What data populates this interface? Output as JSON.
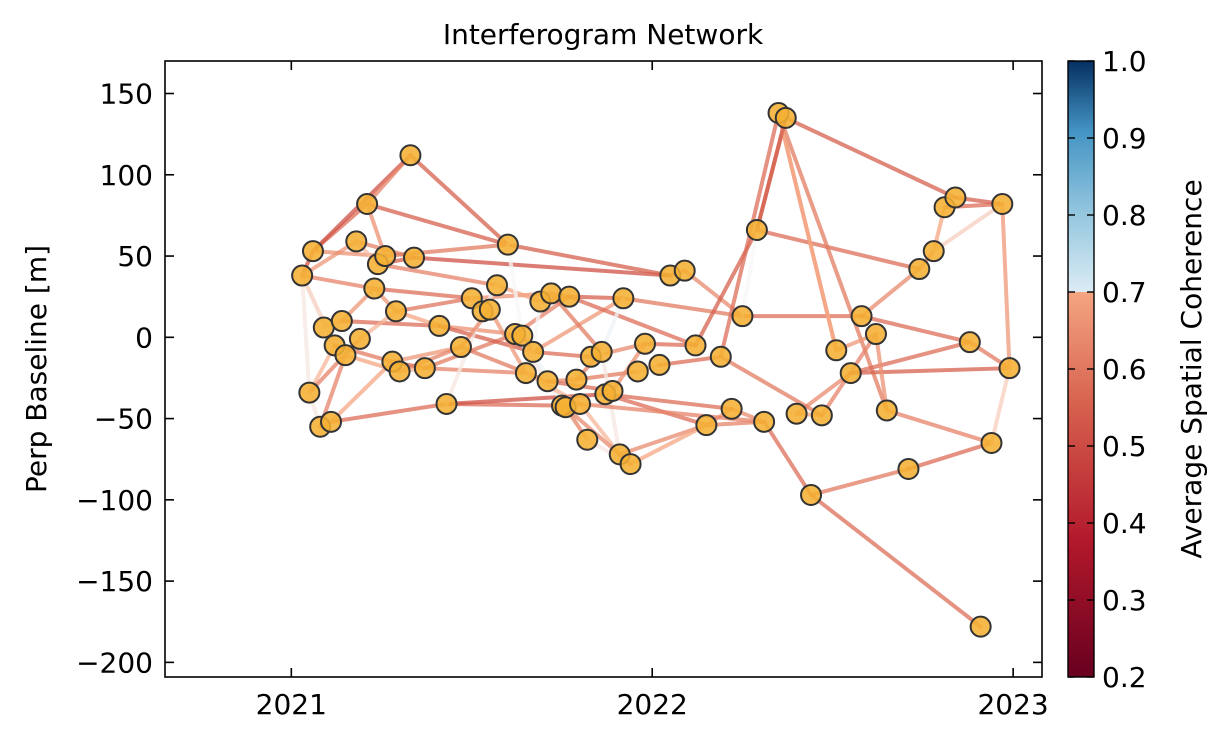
{
  "chart_data": {
    "type": "scatter",
    "title": "Interferogram Network",
    "xlabel": "",
    "ylabel": "Perp Baseline [m]",
    "xlim": [
      2020.65,
      2023.08
    ],
    "ylim": [
      -209,
      170
    ],
    "xticks": [
      2021,
      2022,
      2023
    ],
    "xtick_labels": [
      "2021",
      "2022",
      "2023"
    ],
    "yticks": [
      -200,
      -150,
      -100,
      -50,
      0,
      50,
      100,
      150
    ],
    "ytick_labels": [
      "−200",
      "−150",
      "−100",
      "−50",
      "0",
      "50",
      "100",
      "150"
    ],
    "grid": false,
    "point_color": "#f5b133",
    "point_edge_color": "#333333",
    "colorbar": {
      "label": "Average Spatial Coherence",
      "range": [
        0.2,
        1.0
      ],
      "ticks": [
        0.2,
        0.3,
        0.4,
        0.5,
        0.6,
        0.7,
        0.8,
        0.9,
        1.0
      ],
      "tick_labels": [
        "0.2",
        "0.3",
        "0.4",
        "0.5",
        "0.6",
        "0.7",
        "0.8",
        "0.9",
        "1.0"
      ],
      "colormap": "RdBu",
      "display_threshold": 0.7
    },
    "points": [
      [
        2021.03,
        38
      ],
      [
        2021.06,
        53
      ],
      [
        2021.05,
        -34
      ],
      [
        2021.08,
        -55
      ],
      [
        2021.11,
        -52
      ],
      [
        2021.09,
        6
      ],
      [
        2021.12,
        -5
      ],
      [
        2021.14,
        10
      ],
      [
        2021.15,
        -11
      ],
      [
        2021.19,
        -1
      ],
      [
        2021.18,
        59
      ],
      [
        2021.21,
        82
      ],
      [
        2021.23,
        30
      ],
      [
        2021.24,
        45
      ],
      [
        2021.26,
        50
      ],
      [
        2021.28,
        -15
      ],
      [
        2021.29,
        16
      ],
      [
        2021.3,
        -21
      ],
      [
        2021.33,
        112
      ],
      [
        2021.34,
        49
      ],
      [
        2021.37,
        -19
      ],
      [
        2021.41,
        7
      ],
      [
        2021.43,
        -41
      ],
      [
        2021.47,
        -6
      ],
      [
        2021.5,
        24
      ],
      [
        2021.53,
        16
      ],
      [
        2021.55,
        17
      ],
      [
        2021.57,
        32
      ],
      [
        2021.6,
        57
      ],
      [
        2021.62,
        2
      ],
      [
        2021.64,
        1
      ],
      [
        2021.65,
        -22
      ],
      [
        2021.67,
        -9
      ],
      [
        2021.69,
        22
      ],
      [
        2021.71,
        -27
      ],
      [
        2021.72,
        27
      ],
      [
        2021.75,
        -42
      ],
      [
        2021.76,
        -43
      ],
      [
        2021.77,
        25
      ],
      [
        2021.79,
        -26
      ],
      [
        2021.8,
        -41
      ],
      [
        2021.82,
        -63
      ],
      [
        2021.83,
        -12
      ],
      [
        2021.86,
        -9
      ],
      [
        2021.87,
        -35
      ],
      [
        2021.89,
        -33
      ],
      [
        2021.91,
        -72
      ],
      [
        2021.92,
        24
      ],
      [
        2021.94,
        -78
      ],
      [
        2021.96,
        -21
      ],
      [
        2021.98,
        -4
      ],
      [
        2022.02,
        -17
      ],
      [
        2022.05,
        38
      ],
      [
        2022.09,
        41
      ],
      [
        2022.12,
        -5
      ],
      [
        2022.15,
        -54
      ],
      [
        2022.19,
        -12
      ],
      [
        2022.22,
        -44
      ],
      [
        2022.25,
        13
      ],
      [
        2022.29,
        66
      ],
      [
        2022.31,
        -52
      ],
      [
        2022.35,
        138
      ],
      [
        2022.37,
        135
      ],
      [
        2022.4,
        -47
      ],
      [
        2022.44,
        -97
      ],
      [
        2022.47,
        -48
      ],
      [
        2022.51,
        -8
      ],
      [
        2022.55,
        -22
      ],
      [
        2022.58,
        13
      ],
      [
        2022.62,
        2
      ],
      [
        2022.65,
        -45
      ],
      [
        2022.71,
        -81
      ],
      [
        2022.74,
        42
      ],
      [
        2022.78,
        53
      ],
      [
        2022.81,
        80
      ],
      [
        2022.84,
        86
      ],
      [
        2022.88,
        -3
      ],
      [
        2022.91,
        -178
      ],
      [
        2022.94,
        -65
      ],
      [
        2022.97,
        82
      ],
      [
        2022.99,
        -19
      ]
    ],
    "edges": [
      [
        0,
        1,
        0.38
      ],
      [
        0,
        2,
        0.58
      ],
      [
        0,
        5,
        0.6
      ],
      [
        0,
        6,
        0.55
      ],
      [
        0,
        10,
        0.48
      ],
      [
        0,
        12,
        0.45
      ],
      [
        1,
        11,
        0.42
      ],
      [
        1,
        18,
        0.38
      ],
      [
        1,
        14,
        0.47
      ],
      [
        2,
        6,
        0.52
      ],
      [
        2,
        9,
        0.45
      ],
      [
        2,
        3,
        0.58
      ],
      [
        3,
        4,
        0.55
      ],
      [
        3,
        8,
        0.45
      ],
      [
        4,
        22,
        0.42
      ],
      [
        4,
        15,
        0.5
      ],
      [
        5,
        7,
        0.52
      ],
      [
        5,
        9,
        0.6
      ],
      [
        6,
        15,
        0.44
      ],
      [
        7,
        21,
        0.42
      ],
      [
        7,
        12,
        0.48
      ],
      [
        8,
        17,
        0.5
      ],
      [
        9,
        16,
        0.52
      ],
      [
        10,
        19,
        0.45
      ],
      [
        10,
        13,
        0.53
      ],
      [
        11,
        18,
        0.45
      ],
      [
        11,
        28,
        0.4
      ],
      [
        11,
        14,
        0.47
      ],
      [
        12,
        24,
        0.42
      ],
      [
        12,
        16,
        0.48
      ],
      [
        13,
        19,
        0.4
      ],
      [
        13,
        27,
        0.45
      ],
      [
        14,
        28,
        0.44
      ],
      [
        15,
        20,
        0.4
      ],
      [
        15,
        23,
        0.48
      ],
      [
        16,
        24,
        0.43
      ],
      [
        16,
        21,
        0.5
      ],
      [
        17,
        23,
        0.45
      ],
      [
        17,
        20,
        0.52
      ],
      [
        18,
        28,
        0.4
      ],
      [
        19,
        52,
        0.38
      ],
      [
        20,
        31,
        0.45
      ],
      [
        20,
        29,
        0.44
      ],
      [
        21,
        29,
        0.47
      ],
      [
        21,
        32,
        0.4
      ],
      [
        22,
        36,
        0.42
      ],
      [
        22,
        44,
        0.38
      ],
      [
        22,
        25,
        0.58
      ],
      [
        23,
        26,
        0.46
      ],
      [
        23,
        34,
        0.44
      ],
      [
        24,
        35,
        0.47
      ],
      [
        24,
        26,
        0.55
      ],
      [
        25,
        29,
        0.6
      ],
      [
        26,
        31,
        0.48
      ],
      [
        27,
        33,
        0.5
      ],
      [
        27,
        25,
        0.62
      ],
      [
        28,
        52,
        0.4
      ],
      [
        28,
        30,
        0.6
      ],
      [
        29,
        41,
        0.58
      ],
      [
        29,
        38,
        0.45
      ],
      [
        30,
        37,
        0.62
      ],
      [
        30,
        32,
        0.45
      ],
      [
        31,
        40,
        0.52
      ],
      [
        32,
        42,
        0.42
      ],
      [
        32,
        47,
        0.48
      ],
      [
        33,
        38,
        0.44
      ],
      [
        33,
        32,
        0.6
      ],
      [
        34,
        39,
        0.46
      ],
      [
        34,
        45,
        0.42
      ],
      [
        35,
        43,
        0.44
      ],
      [
        35,
        38,
        0.48
      ],
      [
        36,
        40,
        0.5
      ],
      [
        37,
        41,
        0.46
      ],
      [
        38,
        47,
        0.4
      ],
      [
        38,
        54,
        0.42
      ],
      [
        39,
        43,
        0.45
      ],
      [
        39,
        49,
        0.44
      ],
      [
        40,
        46,
        0.52
      ],
      [
        41,
        48,
        0.58
      ],
      [
        42,
        50,
        0.46
      ],
      [
        43,
        46,
        0.58
      ],
      [
        44,
        55,
        0.42
      ],
      [
        45,
        50,
        0.47
      ],
      [
        46,
        55,
        0.46
      ],
      [
        47,
        58,
        0.44
      ],
      [
        47,
        43,
        0.62
      ],
      [
        48,
        55,
        0.5
      ],
      [
        49,
        51,
        0.55
      ],
      [
        50,
        54,
        0.42
      ],
      [
        51,
        56,
        0.42
      ],
      [
        52,
        53,
        0.44
      ],
      [
        53,
        58,
        0.46
      ],
      [
        54,
        59,
        0.4
      ],
      [
        55,
        57,
        0.48
      ],
      [
        55,
        60,
        0.45
      ],
      [
        56,
        61,
        0.42
      ],
      [
        57,
        60,
        0.46
      ],
      [
        58,
        68,
        0.42
      ],
      [
        59,
        62,
        0.4
      ],
      [
        59,
        72,
        0.42
      ],
      [
        59,
        58,
        0.6
      ],
      [
        60,
        64,
        0.42
      ],
      [
        61,
        66,
        0.48
      ],
      [
        61,
        70,
        0.44
      ],
      [
        62,
        75,
        0.4
      ],
      [
        63,
        67,
        0.46
      ],
      [
        63,
        65,
        0.5
      ],
      [
        64,
        71,
        0.44
      ],
      [
        64,
        77,
        0.42
      ],
      [
        65,
        69,
        0.45
      ],
      [
        66,
        69,
        0.48
      ],
      [
        67,
        76,
        0.42
      ],
      [
        67,
        80,
        0.4
      ],
      [
        68,
        72,
        0.46
      ],
      [
        68,
        76,
        0.42
      ],
      [
        69,
        70,
        0.47
      ],
      [
        70,
        78,
        0.45
      ],
      [
        71,
        78,
        0.42
      ],
      [
        72,
        73,
        0.46
      ],
      [
        73,
        74,
        0.5
      ],
      [
        73,
        79,
        0.55
      ],
      [
        74,
        79,
        0.42
      ],
      [
        75,
        79,
        0.4
      ],
      [
        76,
        80,
        0.44
      ],
      [
        79,
        80,
        0.48
      ],
      [
        80,
        78,
        0.55
      ],
      [
        57,
        44,
        0.42
      ],
      [
        65,
        56,
        0.44
      ],
      [
        60,
        40,
        0.45
      ],
      [
        66,
        61,
        0.5
      ],
      [
        48,
        37,
        0.46
      ],
      [
        62,
        59,
        0.4
      ]
    ]
  }
}
